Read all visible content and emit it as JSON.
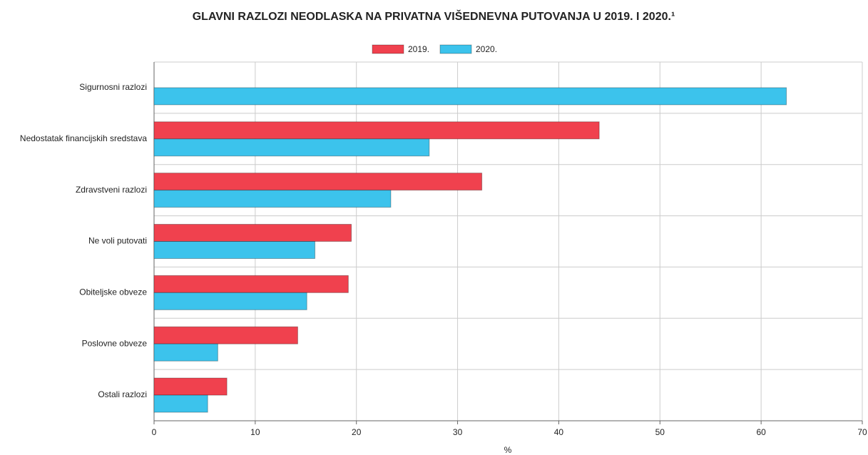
{
  "chart_data": {
    "type": "hbar",
    "title": "GLAVNI RAZLOZI NEODLASKA NA PRIVATNA VIŠEDNEVNA PUTOVANJA U 2019. I 2020.¹",
    "xlabel": "%",
    "categories": [
      "Sigurnosni razlozi",
      "Nedostatak financijskih sredstava",
      "Zdravstveni razlozi",
      "Ne voli putovati",
      "Obiteljske obveze",
      "Poslovne obveze",
      "Ostali razlozi"
    ],
    "series": [
      {
        "name": "2019.",
        "color": "#f0414e",
        "values": [
          null,
          44.0,
          32.4,
          19.5,
          19.2,
          14.2,
          7.2
        ]
      },
      {
        "name": "2020.",
        "color": "#3cc3ec",
        "values": [
          62.5,
          27.2,
          23.4,
          15.9,
          15.1,
          6.3,
          5.3
        ]
      }
    ],
    "xlim": [
      0,
      70
    ],
    "xticks": [
      0,
      10,
      20,
      30,
      40,
      50,
      60,
      70
    ],
    "grid": true,
    "legend": "top"
  }
}
